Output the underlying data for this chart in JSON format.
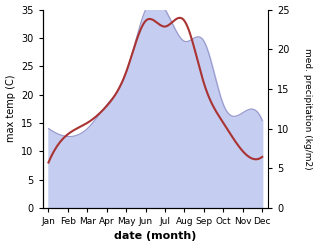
{
  "months": [
    "Jan",
    "Feb",
    "Mar",
    "Apr",
    "May",
    "Jun",
    "Jul",
    "Aug",
    "Sep",
    "Oct",
    "Nov",
    "Dec"
  ],
  "temperature": [
    8,
    13,
    15,
    18,
    24,
    33,
    32,
    33,
    22,
    15,
    10,
    9
  ],
  "precipitation": [
    10,
    9,
    10,
    13,
    17,
    25,
    25,
    21,
    21,
    13,
    12,
    11
  ],
  "temp_color": "#aa3333",
  "precip_fill_color": "#c5cdf0",
  "precip_line_color": "#9999cc",
  "left_ylabel": "max temp (C)",
  "right_ylabel": "med. precipitation (kg/m2)",
  "xlabel": "date (month)",
  "ylim_temp": [
    0,
    35
  ],
  "ylim_precip": [
    0,
    25
  ],
  "yticks_temp": [
    0,
    5,
    10,
    15,
    20,
    25,
    30,
    35
  ],
  "yticks_precip": [
    0,
    5,
    10,
    15,
    20,
    25
  ],
  "background_color": "#ffffff"
}
